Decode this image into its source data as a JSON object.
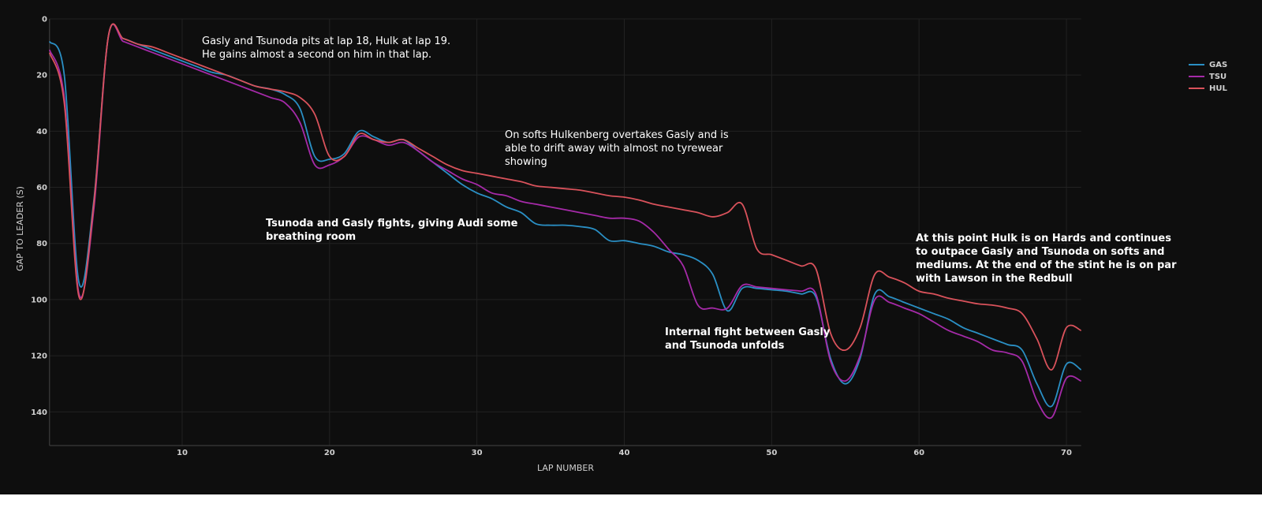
{
  "chart_data": {
    "type": "line",
    "xlabel": "LAP NUMBER",
    "ylabel": "GAP TO LEADER (S)",
    "x": [
      1,
      2,
      3,
      4,
      5,
      6,
      7,
      8,
      9,
      10,
      11,
      12,
      13,
      14,
      15,
      16,
      17,
      18,
      19,
      20,
      21,
      22,
      23,
      24,
      25,
      26,
      27,
      28,
      29,
      30,
      31,
      32,
      33,
      34,
      35,
      36,
      37,
      38,
      39,
      40,
      41,
      42,
      43,
      44,
      45,
      46,
      47,
      48,
      49,
      50,
      51,
      52,
      53,
      54,
      55,
      56,
      57,
      58,
      59,
      60,
      61,
      62,
      63,
      64,
      65,
      66,
      67,
      68,
      69,
      70,
      71
    ],
    "series": [
      {
        "name": "GAS",
        "color": "#2a8fc4",
        "values": [
          8,
          20,
          94,
          65,
          6,
          7,
          9,
          11,
          13,
          15,
          17,
          19,
          20,
          22,
          24,
          25,
          27,
          32,
          49,
          50,
          48,
          40,
          42,
          44,
          43,
          47,
          51,
          55,
          59,
          62,
          64,
          67,
          69,
          73,
          73.5,
          73.5,
          74,
          75,
          79,
          79,
          80,
          81,
          83,
          84,
          86,
          91,
          104,
          96,
          96,
          96.5,
          97,
          98,
          99,
          121,
          130,
          121,
          98,
          99,
          101,
          103,
          105,
          107,
          110,
          112,
          114,
          116,
          118,
          130,
          138,
          123,
          125
        ]
      },
      {
        "name": "TSU",
        "color": "#a52aa8",
        "values": [
          11,
          28,
          98,
          68,
          6,
          8,
          10,
          12,
          14,
          16,
          18,
          20,
          22,
          24,
          26,
          28,
          30,
          37,
          52,
          52,
          49,
          42,
          43,
          45,
          44,
          47,
          51,
          54,
          57,
          59,
          62,
          63,
          65,
          66,
          67,
          68,
          69,
          70,
          71,
          71,
          72,
          76,
          82,
          88,
          102,
          103,
          103,
          95,
          95.5,
          96,
          96.5,
          97,
          98,
          122,
          129,
          120,
          100,
          101,
          103,
          105,
          108,
          111,
          113,
          115,
          118,
          119,
          122,
          136,
          142,
          128,
          129
        ]
      },
      {
        "name": "HUL",
        "color": "#d9525b",
        "values": [
          12,
          30,
          99,
          66,
          6,
          7,
          9,
          10,
          12,
          14,
          16,
          18,
          20,
          22,
          24,
          25,
          26,
          28,
          34,
          49,
          49,
          41,
          43,
          44,
          43,
          46,
          49,
          52,
          54,
          55,
          56,
          57,
          58,
          59.5,
          60,
          60.5,
          61,
          62,
          63,
          63.5,
          64.5,
          66,
          67,
          68,
          69,
          70.5,
          69,
          66,
          82,
          84,
          86,
          88,
          89,
          112,
          118,
          110,
          91,
          92,
          94,
          97,
          98,
          99.5,
          100.5,
          101.5,
          102,
          103,
          105,
          114,
          125,
          110,
          111
        ]
      }
    ],
    "xlim": [
      1,
      71
    ],
    "xticks": [
      10,
      20,
      30,
      40,
      50,
      60,
      70
    ],
    "ylim": [
      152,
      0
    ],
    "yticks": [
      0,
      20,
      40,
      60,
      80,
      100,
      120,
      140
    ],
    "grid": true,
    "legend": "top-right",
    "annotations": [
      [
        "Gasly and Tsunoda pits at lap 18, Hulk at lap 19.",
        "He gains almost a second on him in that lap."
      ],
      [
        "On softs Hulkenberg overtakes Gasly and is",
        "able to drift away with almost no tyrewear",
        "showing"
      ],
      [
        "Tsunoda and Gasly fights, giving Audi some",
        "breathing room"
      ],
      [
        "Internal fight between Gasly",
        "and Tsunoda unfolds"
      ],
      [
        "At this point Hulk is on Hards and continues",
        "to outpace Gasly and Tsunoda on softs and",
        "mediums. At the end of the stint he is on par",
        "with Lawson in the Redbull"
      ]
    ]
  }
}
